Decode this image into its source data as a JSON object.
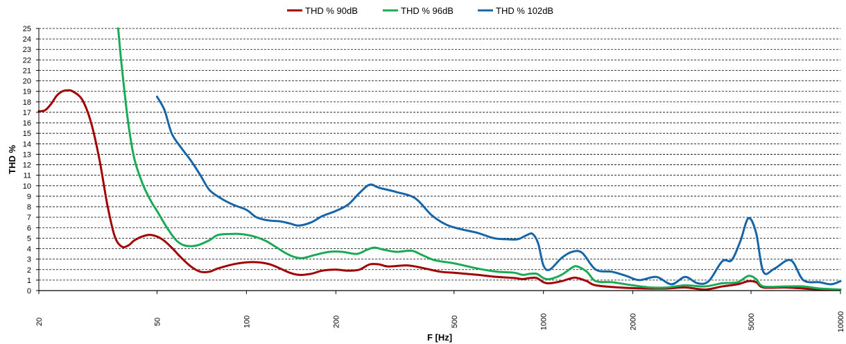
{
  "chart_data": {
    "type": "line",
    "xlabel": "F [Hz]",
    "ylabel": "THD %",
    "xscale": "log",
    "xlim": [
      20,
      10000
    ],
    "ylim": [
      0,
      25
    ],
    "grid": "horizontal dashed",
    "legend_position": "top-center",
    "x_ticks": [
      20,
      50,
      100,
      200,
      500,
      1000,
      2000,
      5000,
      10000
    ],
    "y_ticks": [
      0,
      1,
      2,
      3,
      4,
      5,
      6,
      7,
      8,
      9,
      10,
      11,
      12,
      13,
      14,
      15,
      16,
      17,
      18,
      19,
      20,
      21,
      22,
      23,
      24,
      25
    ],
    "series": [
      {
        "name": "THD % 90dB",
        "color": "#a00000",
        "points": [
          [
            20,
            17.1
          ],
          [
            21,
            17.2
          ],
          [
            22,
            17.8
          ],
          [
            23,
            18.6
          ],
          [
            24,
            19.0
          ],
          [
            25,
            19.1
          ],
          [
            26,
            19.0
          ],
          [
            28,
            18.2
          ],
          [
            30,
            16.0
          ],
          [
            32,
            12.5
          ],
          [
            34,
            8.2
          ],
          [
            36,
            5.2
          ],
          [
            38,
            4.2
          ],
          [
            40,
            4.3
          ],
          [
            42,
            4.8
          ],
          [
            45,
            5.2
          ],
          [
            48,
            5.3
          ],
          [
            52,
            4.9
          ],
          [
            56,
            4.1
          ],
          [
            60,
            3.2
          ],
          [
            65,
            2.3
          ],
          [
            70,
            1.8
          ],
          [
            75,
            1.8
          ],
          [
            80,
            2.1
          ],
          [
            90,
            2.5
          ],
          [
            100,
            2.7
          ],
          [
            110,
            2.7
          ],
          [
            120,
            2.5
          ],
          [
            130,
            2.1
          ],
          [
            140,
            1.7
          ],
          [
            150,
            1.5
          ],
          [
            165,
            1.6
          ],
          [
            180,
            1.9
          ],
          [
            200,
            2.0
          ],
          [
            220,
            1.9
          ],
          [
            240,
            2.0
          ],
          [
            260,
            2.5
          ],
          [
            280,
            2.5
          ],
          [
            300,
            2.3
          ],
          [
            350,
            2.4
          ],
          [
            400,
            2.1
          ],
          [
            450,
            1.8
          ],
          [
            500,
            1.7
          ],
          [
            600,
            1.5
          ],
          [
            700,
            1.3
          ],
          [
            800,
            1.2
          ],
          [
            850,
            1.1
          ],
          [
            900,
            1.2
          ],
          [
            950,
            1.2
          ],
          [
            1000,
            0.8
          ],
          [
            1050,
            0.7
          ],
          [
            1150,
            0.9
          ],
          [
            1250,
            1.2
          ],
          [
            1300,
            1.2
          ],
          [
            1400,
            0.9
          ],
          [
            1500,
            0.5
          ],
          [
            1800,
            0.3
          ],
          [
            2200,
            0.2
          ],
          [
            2600,
            0.2
          ],
          [
            3000,
            0.3
          ],
          [
            3500,
            0.1
          ],
          [
            4000,
            0.4
          ],
          [
            4500,
            0.6
          ],
          [
            4900,
            0.9
          ],
          [
            5200,
            0.8
          ],
          [
            5500,
            0.3
          ],
          [
            6500,
            0.3
          ],
          [
            7500,
            0.2
          ],
          [
            8500,
            0.1
          ],
          [
            9500,
            0.1
          ],
          [
            10000,
            0.1
          ]
        ]
      },
      {
        "name": "THD % 96dB",
        "color": "#1aaa55",
        "points": [
          [
            37,
            25.0
          ],
          [
            38,
            21.5
          ],
          [
            40,
            16.0
          ],
          [
            42,
            12.5
          ],
          [
            45,
            10.0
          ],
          [
            48,
            8.4
          ],
          [
            50,
            7.6
          ],
          [
            54,
            6.0
          ],
          [
            58,
            4.8
          ],
          [
            62,
            4.3
          ],
          [
            68,
            4.3
          ],
          [
            75,
            4.8
          ],
          [
            80,
            5.3
          ],
          [
            88,
            5.4
          ],
          [
            95,
            5.4
          ],
          [
            105,
            5.2
          ],
          [
            115,
            4.8
          ],
          [
            125,
            4.2
          ],
          [
            135,
            3.6
          ],
          [
            145,
            3.2
          ],
          [
            155,
            3.1
          ],
          [
            170,
            3.4
          ],
          [
            190,
            3.7
          ],
          [
            210,
            3.7
          ],
          [
            235,
            3.5
          ],
          [
            255,
            3.9
          ],
          [
            270,
            4.1
          ],
          [
            290,
            3.9
          ],
          [
            320,
            3.7
          ],
          [
            360,
            3.8
          ],
          [
            390,
            3.4
          ],
          [
            430,
            2.9
          ],
          [
            500,
            2.6
          ],
          [
            600,
            2.1
          ],
          [
            700,
            1.8
          ],
          [
            800,
            1.7
          ],
          [
            850,
            1.5
          ],
          [
            900,
            1.6
          ],
          [
            950,
            1.6
          ],
          [
            1000,
            1.2
          ],
          [
            1050,
            1.1
          ],
          [
            1150,
            1.5
          ],
          [
            1250,
            2.2
          ],
          [
            1300,
            2.3
          ],
          [
            1400,
            1.8
          ],
          [
            1500,
            0.9
          ],
          [
            1700,
            0.8
          ],
          [
            2000,
            0.5
          ],
          [
            2300,
            0.3
          ],
          [
            2600,
            0.3
          ],
          [
            3000,
            0.5
          ],
          [
            3500,
            0.4
          ],
          [
            4000,
            0.7
          ],
          [
            4500,
            0.8
          ],
          [
            4900,
            1.4
          ],
          [
            5200,
            1.1
          ],
          [
            5500,
            0.4
          ],
          [
            6500,
            0.4
          ],
          [
            7500,
            0.4
          ],
          [
            8500,
            0.2
          ],
          [
            10000,
            0.1
          ]
        ]
      },
      {
        "name": "THD % 102dB",
        "color": "#1565a8",
        "points": [
          [
            50,
            18.5
          ],
          [
            53,
            17.2
          ],
          [
            56,
            15.0
          ],
          [
            60,
            13.7
          ],
          [
            65,
            12.4
          ],
          [
            70,
            11.0
          ],
          [
            75,
            9.6
          ],
          [
            82,
            8.8
          ],
          [
            90,
            8.2
          ],
          [
            100,
            7.7
          ],
          [
            108,
            7.0
          ],
          [
            118,
            6.7
          ],
          [
            130,
            6.6
          ],
          [
            140,
            6.4
          ],
          [
            150,
            6.2
          ],
          [
            165,
            6.5
          ],
          [
            180,
            7.1
          ],
          [
            200,
            7.6
          ],
          [
            220,
            8.2
          ],
          [
            240,
            9.3
          ],
          [
            260,
            10.1
          ],
          [
            280,
            9.8
          ],
          [
            320,
            9.4
          ],
          [
            370,
            8.8
          ],
          [
            420,
            7.2
          ],
          [
            470,
            6.3
          ],
          [
            520,
            5.9
          ],
          [
            600,
            5.5
          ],
          [
            680,
            5.0
          ],
          [
            750,
            4.9
          ],
          [
            820,
            4.9
          ],
          [
            880,
            5.3
          ],
          [
            920,
            5.4
          ],
          [
            960,
            4.5
          ],
          [
            1000,
            2.4
          ],
          [
            1050,
            2.0
          ],
          [
            1150,
            3.1
          ],
          [
            1250,
            3.7
          ],
          [
            1350,
            3.6
          ],
          [
            1500,
            2.0
          ],
          [
            1700,
            1.8
          ],
          [
            1900,
            1.4
          ],
          [
            2100,
            1.0
          ],
          [
            2400,
            1.3
          ],
          [
            2700,
            0.6
          ],
          [
            3000,
            1.3
          ],
          [
            3300,
            0.7
          ],
          [
            3600,
            0.9
          ],
          [
            4000,
            2.8
          ],
          [
            4300,
            2.9
          ],
          [
            4600,
            4.7
          ],
          [
            4900,
            6.9
          ],
          [
            5200,
            5.5
          ],
          [
            5500,
            1.8
          ],
          [
            6000,
            2.1
          ],
          [
            6800,
            2.9
          ],
          [
            7500,
            1.0
          ],
          [
            8500,
            0.8
          ],
          [
            9300,
            0.6
          ],
          [
            10000,
            0.9
          ]
        ]
      }
    ]
  }
}
